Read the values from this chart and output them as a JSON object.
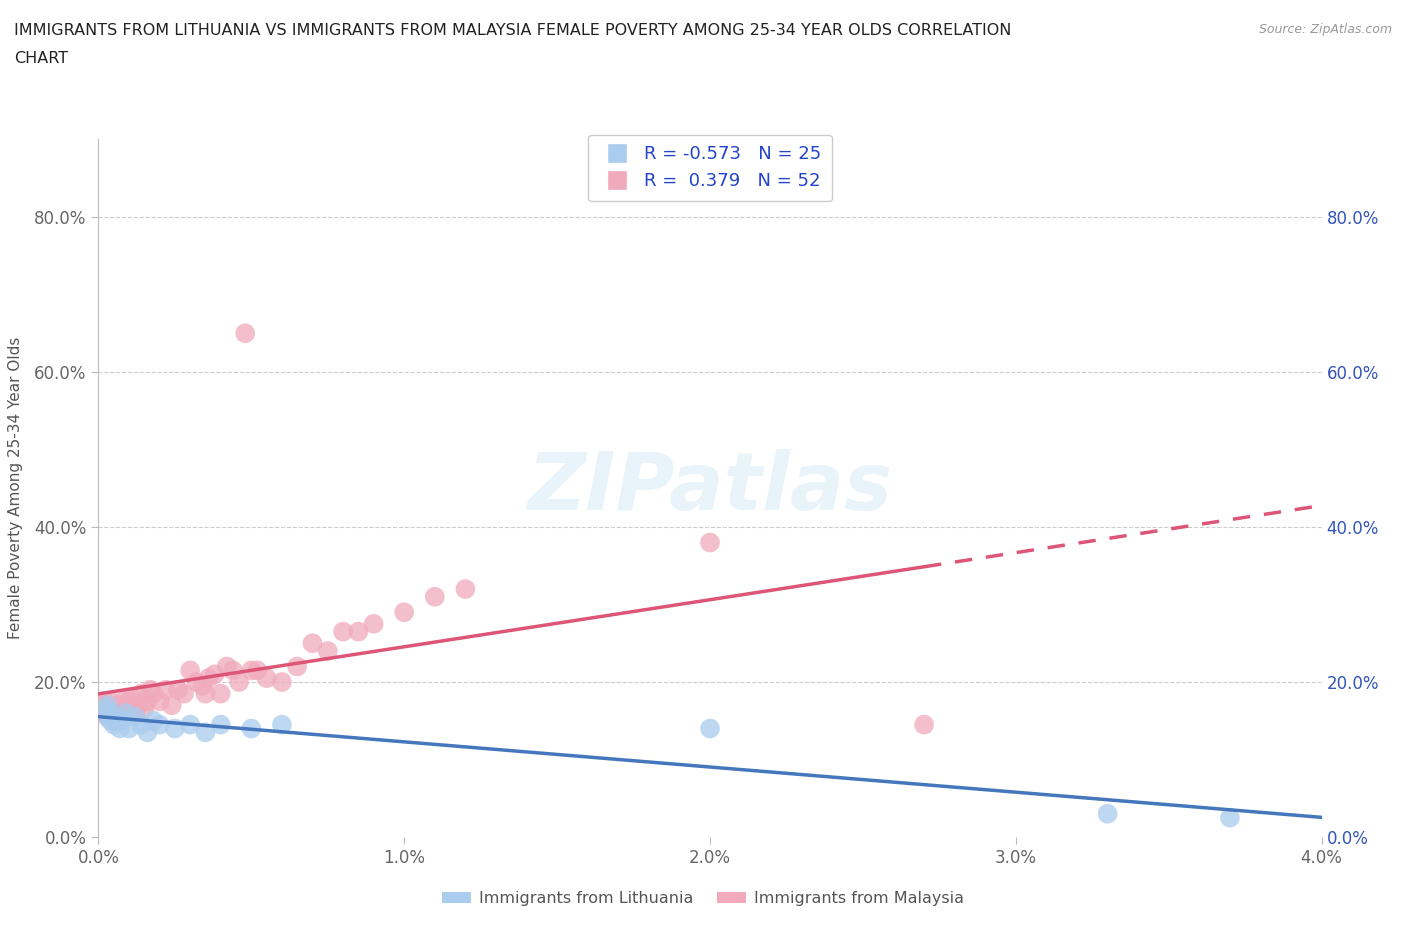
{
  "title_line1": "IMMIGRANTS FROM LITHUANIA VS IMMIGRANTS FROM MALAYSIA FEMALE POVERTY AMONG 25-34 YEAR OLDS CORRELATION",
  "title_line2": "CHART",
  "source_text": "Source: ZipAtlas.com",
  "ylabel": "Female Poverty Among 25-34 Year Olds",
  "xlim": [
    0.0,
    0.04
  ],
  "ylim": [
    0.0,
    0.9
  ],
  "xtick_vals": [
    0.0,
    0.01,
    0.02,
    0.03,
    0.04
  ],
  "xtick_labels": [
    "0.0%",
    "1.0%",
    "2.0%",
    "3.0%",
    "4.0%"
  ],
  "ytick_vals": [
    0.0,
    0.2,
    0.4,
    0.6,
    0.8
  ],
  "ytick_labels": [
    "0.0%",
    "20.0%",
    "40.0%",
    "60.0%",
    "80.0%"
  ],
  "R_lithuania": -0.573,
  "N_lithuania": 25,
  "R_malaysia": 0.379,
  "N_malaysia": 52,
  "color_lithuania": "#aaccee",
  "color_malaysia": "#f0aabb",
  "line_color_lithuania": "#4477bb",
  "line_color_malaysia": "#dd5577",
  "watermark": "ZIPatlas",
  "legend_color": "#2244cc",
  "lithuania_x": [
    0.0002,
    0.0003,
    0.0003,
    0.0004,
    0.0004,
    0.0005,
    0.0006,
    0.0007,
    0.0008,
    0.0009,
    0.001,
    0.0012,
    0.0014,
    0.0016,
    0.0018,
    0.002,
    0.0025,
    0.003,
    0.0035,
    0.004,
    0.005,
    0.006,
    0.02,
    0.033,
    0.037
  ],
  "lithuania_y": [
    0.165,
    0.155,
    0.17,
    0.15,
    0.16,
    0.145,
    0.155,
    0.14,
    0.15,
    0.16,
    0.14,
    0.155,
    0.145,
    0.135,
    0.15,
    0.145,
    0.14,
    0.145,
    0.135,
    0.145,
    0.14,
    0.145,
    0.14,
    0.03,
    0.025
  ],
  "malaysia_x": [
    0.0001,
    0.0002,
    0.0002,
    0.0003,
    0.0003,
    0.0004,
    0.0005,
    0.0005,
    0.0006,
    0.0007,
    0.0008,
    0.0009,
    0.001,
    0.0011,
    0.0012,
    0.0013,
    0.0014,
    0.0015,
    0.0016,
    0.0017,
    0.0018,
    0.002,
    0.0022,
    0.0024,
    0.0026,
    0.0028,
    0.003,
    0.0032,
    0.0034,
    0.0035,
    0.0036,
    0.0038,
    0.004,
    0.0042,
    0.0044,
    0.0046,
    0.0048,
    0.005,
    0.0052,
    0.0055,
    0.006,
    0.0065,
    0.007,
    0.0075,
    0.008,
    0.0085,
    0.009,
    0.01,
    0.011,
    0.012,
    0.02,
    0.027
  ],
  "malaysia_y": [
    0.17,
    0.175,
    0.16,
    0.165,
    0.155,
    0.175,
    0.16,
    0.15,
    0.17,
    0.155,
    0.175,
    0.165,
    0.175,
    0.18,
    0.16,
    0.17,
    0.185,
    0.165,
    0.175,
    0.19,
    0.185,
    0.175,
    0.19,
    0.17,
    0.19,
    0.185,
    0.215,
    0.2,
    0.195,
    0.185,
    0.205,
    0.21,
    0.185,
    0.22,
    0.215,
    0.2,
    0.65,
    0.215,
    0.215,
    0.205,
    0.2,
    0.22,
    0.25,
    0.24,
    0.265,
    0.265,
    0.275,
    0.29,
    0.31,
    0.32,
    0.38,
    0.145
  ]
}
